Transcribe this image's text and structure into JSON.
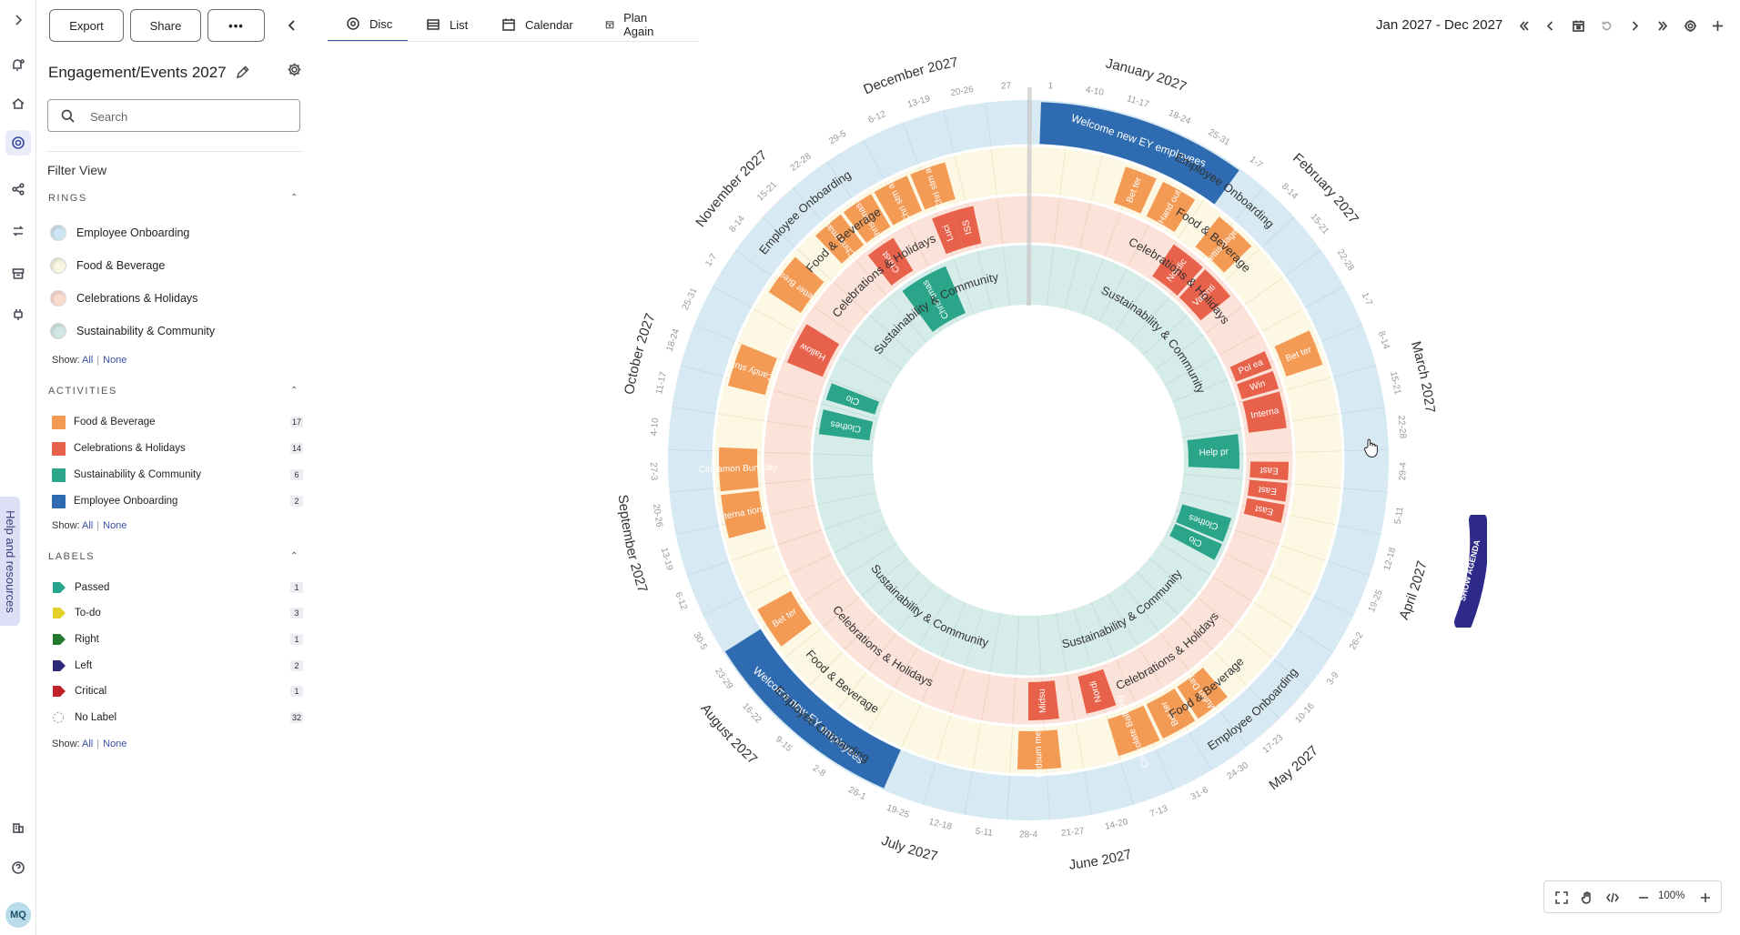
{
  "toolbar": {
    "export": "Export",
    "share": "Share",
    "more": "•••"
  },
  "plan": {
    "title": "Engagement/Events 2027"
  },
  "search": {
    "placeholder": "Search"
  },
  "filter": {
    "title": "Filter View",
    "rings_heading": "RINGS",
    "rings": [
      {
        "label": "Employee Onboarding",
        "color": "#cfe6f1"
      },
      {
        "label": "Food & Beverage",
        "color": "#fbf6df"
      },
      {
        "label": "Celebrations & Holidays",
        "color": "#fbdccf"
      },
      {
        "label": "Sustainability & Community",
        "color": "#cfe8e5"
      }
    ],
    "activities_heading": "ACTIVITIES",
    "activities": [
      {
        "label": "Food & Beverage",
        "count": "17",
        "color": "#f39a55"
      },
      {
        "label": "Celebrations & Holidays",
        "count": "14",
        "color": "#e8614a"
      },
      {
        "label": "Sustainability & Community",
        "count": "6",
        "color": "#2aa58a"
      },
      {
        "label": "Employee Onboarding",
        "count": "2",
        "color": "#2e6bb0"
      }
    ],
    "labels_heading": "LABELS",
    "labels": [
      {
        "label": "Passed",
        "count": "1",
        "color": "#27a48c"
      },
      {
        "label": "To-do",
        "count": "3",
        "color": "#e4d22a"
      },
      {
        "label": "Right",
        "count": "1",
        "color": "#237a2e"
      },
      {
        "label": "Left",
        "count": "2",
        "color": "#2e2a7a"
      },
      {
        "label": "Critical",
        "count": "1",
        "color": "#c0222a"
      },
      {
        "label": "No Label",
        "count": "32",
        "color": "none"
      }
    ],
    "show": "Show:",
    "all": "All",
    "none": "None"
  },
  "help": {
    "label": "Help and resources"
  },
  "user": {
    "initials": "MQ"
  },
  "views": {
    "disc": "Disc",
    "list": "List",
    "calendar": "Calendar",
    "plan_again": "Plan Again"
  },
  "nav": {
    "range": "Jan 2027 - Dec 2027"
  },
  "zoom": {
    "value": "100%"
  },
  "agenda": {
    "label": "SHOW AGENDA"
  },
  "disc": {
    "months": [
      "January 2027",
      "February 2027",
      "March 2027",
      "April 2027",
      "May 2027",
      "June 2027",
      "July 2027",
      "August 2027",
      "September 2027",
      "October 2027",
      "November 2027",
      "December 2027"
    ],
    "weeks": [
      [
        "1",
        "4-10",
        "11-17",
        "18-24",
        "25-31"
      ],
      [
        "1-7",
        "8-14",
        "15-21",
        "22-28"
      ],
      [
        "1-7",
        "8-14",
        "15-21",
        "22-28",
        "29-4"
      ],
      [
        "5-11",
        "12-18",
        "19-25",
        "26-2"
      ],
      [
        "3-9",
        "10-16",
        "17-23",
        "24-30",
        "31-6"
      ],
      [
        "7-13",
        "14-20",
        "21-27",
        "28-4"
      ],
      [
        "5-11",
        "12-18",
        "19-25",
        "26-1"
      ],
      [
        "2-8",
        "9-15",
        "16-22",
        "23-29",
        "30-5"
      ],
      [
        "6-12",
        "13-19",
        "20-26",
        "27-3"
      ],
      [
        "4-10",
        "11-17",
        "18-24",
        "25-31"
      ],
      [
        "1-7",
        "8-14",
        "15-21",
        "22-28"
      ],
      [
        "29-5",
        "6-12",
        "13-19",
        "20-26",
        "27"
      ]
    ],
    "ring_labels": [
      "Employee Onboarding",
      "Food & Beverage",
      "Celebrations & Holidays",
      "Sustainability & Community"
    ],
    "activities": [
      {
        "ring": 0,
        "start": 0.3,
        "end": 5.3,
        "color": "#2e6bb0",
        "text": "Welcome new EY employees"
      },
      {
        "ring": 0,
        "start": 30.0,
        "end": 35.0,
        "color": "#2e6bb0",
        "text": "Welcome new EY employees"
      },
      {
        "ring": 1,
        "start": 2.7,
        "end": 3.6,
        "color": "#f39a55",
        "text": "Bet ter"
      },
      {
        "ring": 1,
        "start": 3.8,
        "end": 4.8,
        "color": "#f39a55",
        "text": "Hand out"
      },
      {
        "ring": 1,
        "start": 5.6,
        "end": 6.8,
        "color": "#f39a55",
        "text": "Fettis dagen"
      },
      {
        "ring": 1,
        "start": 9.6,
        "end": 10.6,
        "color": "#f39a55",
        "text": "Bet ter"
      },
      {
        "ring": 1,
        "start": 20.6,
        "end": 21.6,
        "color": "#f39a55",
        "text": "Muffin Day"
      },
      {
        "ring": 1,
        "start": 21.7,
        "end": 22.7,
        "color": "#f39a55",
        "text": "Bet ter"
      },
      {
        "ring": 1,
        "start": 22.8,
        "end": 24.0,
        "color": "#f39a55",
        "text": "Chocolate Ball Day"
      },
      {
        "ring": 1,
        "start": 25.6,
        "end": 26.8,
        "color": "#f39a55",
        "text": "Midsum mer -"
      },
      {
        "ring": 1,
        "start": 34.3,
        "end": 35.5,
        "color": "#f39a55",
        "text": "Bet ter"
      },
      {
        "ring": 1,
        "start": 37.6,
        "end": 38.8,
        "color": "#f39a55",
        "text": "Interna tional"
      },
      {
        "ring": 1,
        "start": 38.9,
        "end": 40.1,
        "color": "#f39a55",
        "text": "Cinnamon Bun Day"
      },
      {
        "ring": 1,
        "start": 41.8,
        "end": 43.0,
        "color": "#f39a55",
        "text": "Candy stuff"
      },
      {
        "ring": 1,
        "start": 44.6,
        "end": 45.8,
        "color": "#f39a55",
        "text": "Better Break"
      },
      {
        "ring": 1,
        "start": 46.6,
        "end": 47.5,
        "color": "#f39a55",
        "text": "Chris tmas"
      },
      {
        "ring": 1,
        "start": 47.6,
        "end": 48.5,
        "color": "#f39a55",
        "text": "Chris tmas h"
      },
      {
        "ring": 1,
        "start": 48.6,
        "end": 49.6,
        "color": "#f39a55",
        "text": "Chri stm as"
      },
      {
        "ring": 1,
        "start": 49.7,
        "end": 50.7,
        "color": "#f39a55",
        "text": "Chri stm as"
      },
      {
        "ring": 2,
        "start": 5.0,
        "end": 6.2,
        "color": "#e8614a",
        "text": "Nordic"
      },
      {
        "ring": 2,
        "start": 6.3,
        "end": 7.5,
        "color": "#e8614a",
        "text": "Valenti"
      },
      {
        "ring": 2,
        "start": 9.6,
        "end": 10.2,
        "color": "#e8614a",
        "text": "Pol ea"
      },
      {
        "ring": 2,
        "start": 10.3,
        "end": 10.9,
        "color": "#e8614a",
        "text": "Win"
      },
      {
        "ring": 2,
        "start": 11.0,
        "end": 12.2,
        "color": "#e8614a",
        "text": "Interna"
      },
      {
        "ring": 2,
        "start": 14.7,
        "end": 15.3,
        "color": "#e8614a",
        "text": "East"
      },
      {
        "ring": 2,
        "start": 14.0,
        "end": 14.6,
        "color": "#e8614a",
        "text": "East"
      },
      {
        "ring": 2,
        "start": 13.3,
        "end": 13.9,
        "color": "#e8614a",
        "text": "East"
      },
      {
        "ring": 2,
        "start": 23.6,
        "end": 24.6,
        "color": "#e8614a",
        "text": "Nordi"
      },
      {
        "ring": 2,
        "start": 25.5,
        "end": 26.5,
        "color": "#e8614a",
        "text": "Midsu"
      },
      {
        "ring": 2,
        "start": 43.0,
        "end": 44.4,
        "color": "#e8614a",
        "text": "Hallow"
      },
      {
        "ring": 2,
        "start": 47.4,
        "end": 48.4,
        "color": "#e8614a",
        "text": "Christ"
      },
      {
        "ring": 2,
        "start": 49.8,
        "end": 50.5,
        "color": "#e8614a",
        "text": "Luci"
      },
      {
        "ring": 2,
        "start": 50.5,
        "end": 51.2,
        "color": "#e8614a",
        "text": "ISS"
      },
      {
        "ring": 3,
        "start": 12.2,
        "end": 13.6,
        "color": "#2aa58a",
        "text": "Help pr"
      },
      {
        "ring": 3,
        "start": 15.6,
        "end": 16.6,
        "color": "#2aa58a",
        "text": "Clothes"
      },
      {
        "ring": 3,
        "start": 16.7,
        "end": 17.4,
        "color": "#2aa58a",
        "text": "Clo"
      },
      {
        "ring": 3,
        "start": 40.8,
        "end": 41.8,
        "color": "#2aa58a",
        "text": "Clothes"
      },
      {
        "ring": 3,
        "start": 42.2,
        "end": 42.9,
        "color": "#2aa58a",
        "text": "Clo"
      },
      {
        "ring": 3,
        "start": 47.6,
        "end": 49.6,
        "color": "#2aa58a",
        "text": "Chris tmas"
      }
    ]
  }
}
